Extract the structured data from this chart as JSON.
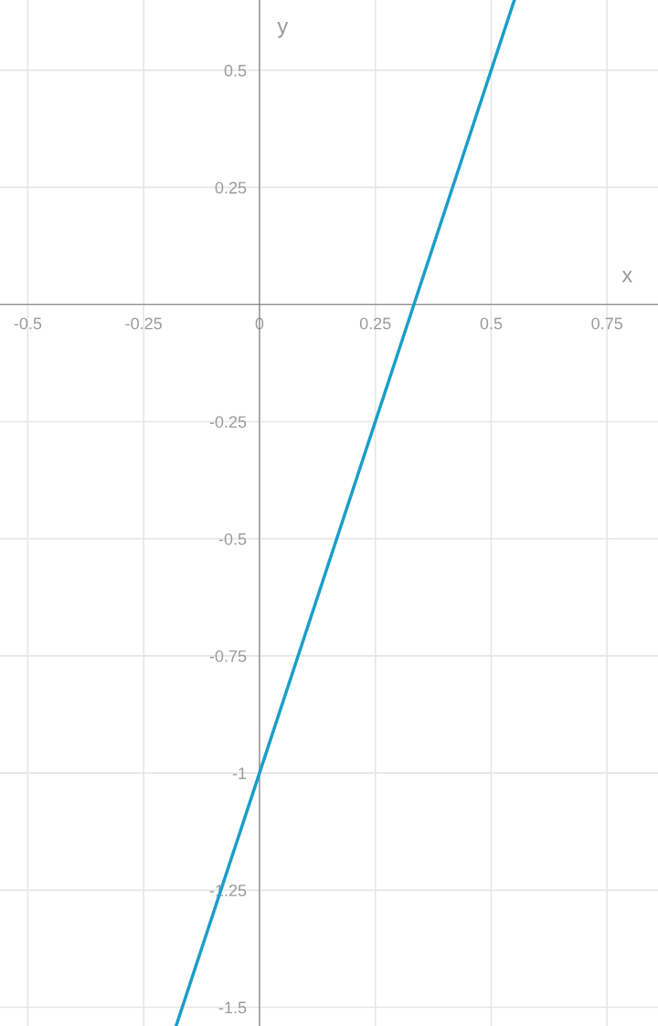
{
  "chart_data": {
    "type": "line",
    "xlabel": "x",
    "ylabel": "y",
    "series": [
      {
        "color": "#1a9ec9",
        "x": [
          -0.18,
          0,
          0.3333,
          0.55
        ],
        "values": [
          -1.54,
          -1,
          0,
          0.65
        ]
      }
    ],
    "xlim": [
      -0.56,
      0.86
    ],
    "ylim": [
      -1.54,
      0.65
    ],
    "xticks": [
      -0.5,
      -0.25,
      0,
      0.25,
      0.5,
      0.75
    ],
    "yticks": [
      -1.5,
      -1.25,
      -1,
      -0.75,
      -0.5,
      -0.25,
      {
        "value": 0,
        "label": null
      },
      0.25,
      0.5
    ],
    "grid": true,
    "marker": "none",
    "line_style": "solid"
  }
}
